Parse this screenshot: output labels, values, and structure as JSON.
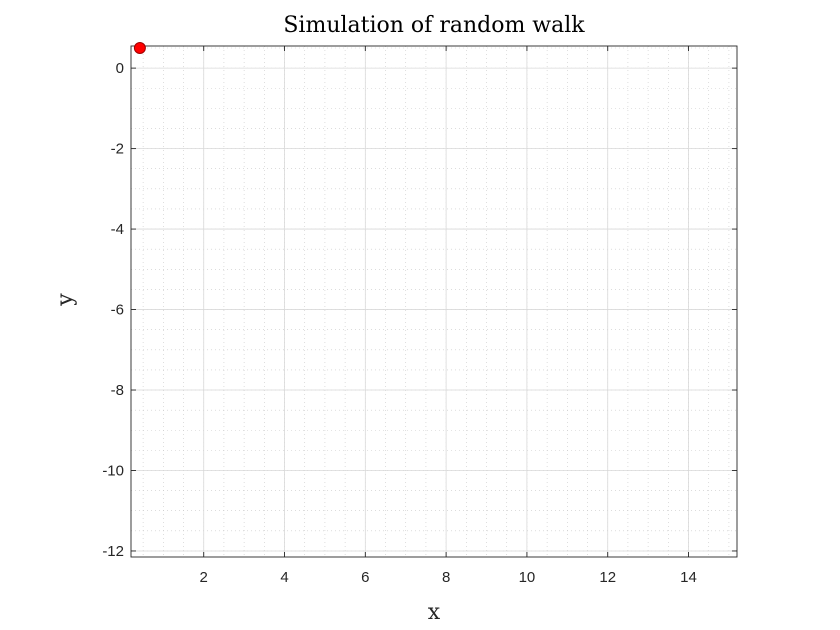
{
  "chart_data": {
    "type": "scatter",
    "title": "Simulation of random walk",
    "xlabel": "x",
    "ylabel": "y",
    "xlim": [
      0.2,
      15.2
    ],
    "ylim": [
      -12.15,
      0.55
    ],
    "xticks": [
      2,
      4,
      6,
      8,
      10,
      12,
      14
    ],
    "yticks": [
      0,
      -2,
      -4,
      -6,
      -8,
      -10,
      -12
    ],
    "x_minor_step": 0.5,
    "y_minor_step": 0.5,
    "grid": true,
    "minor_grid": true,
    "series": [
      {
        "x": [
          0.42
        ],
        "y": [
          0.5
        ],
        "color": "#ff0000",
        "marker": "circle"
      }
    ]
  },
  "colors": {
    "axis": "#262626",
    "major_grid": "#d9d9d9",
    "minor_grid": "#c8c8c8",
    "marker_fill": "#ff0000",
    "marker_edge": "#a00000"
  }
}
